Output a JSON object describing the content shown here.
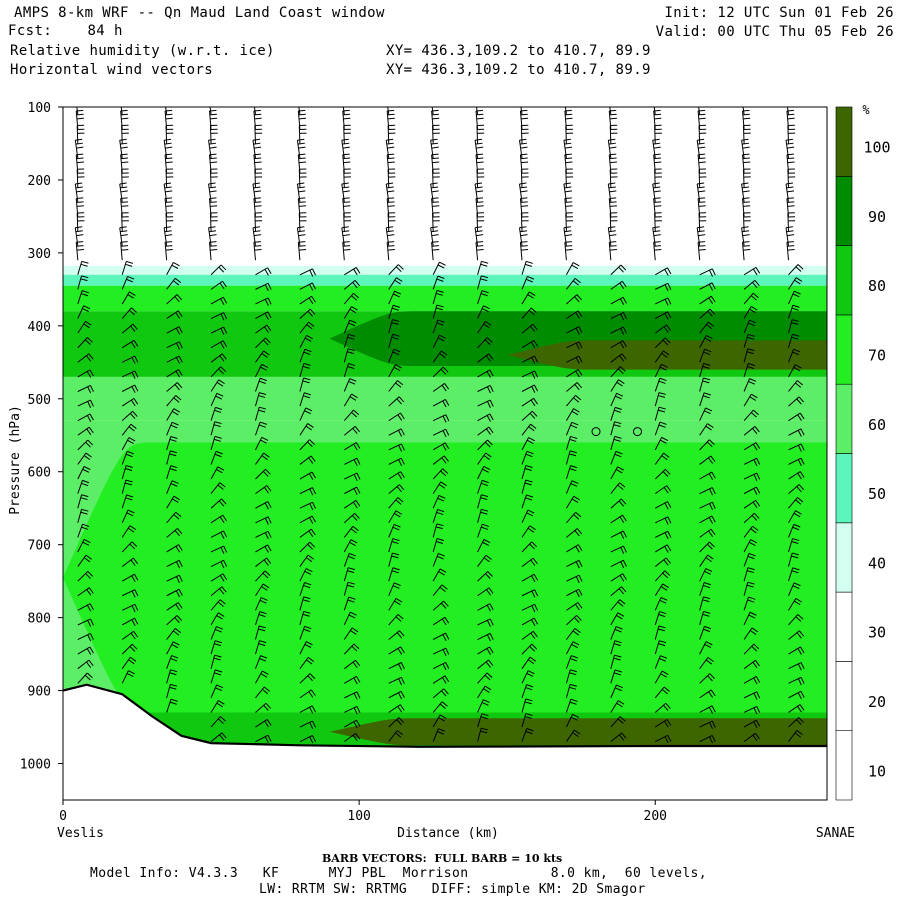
{
  "header": {
    "title": "AMPS 8-km WRF -- Qn Maud Land Coast window",
    "fcst": "Fcst:    84 h",
    "field1": "Relative humidity (w.r.t. ice)",
    "field2": "Horizontal wind vectors",
    "xy1": "XY= 436.3,109.2 to 410.7, 89.9",
    "xy2": "XY= 436.3,109.2 to 410.7, 89.9",
    "init": "Init: 12 UTC Sun 01 Feb 26",
    "valid": "Valid: 00 UTC Thu 05 Feb 26"
  },
  "footer": {
    "barb_note": "BARB VECTORS:  FULL BARB = 10 kts",
    "model_info": "Model Info: V4.3.3   KF      MYJ PBL  Morrison          8.0 km,  60 levels,",
    "model_info2": "LW: RRTM SW: RRTMG   DIFF: simple KM: 2D Smagor"
  },
  "chart_data": {
    "type": "heatmap",
    "title": "Relative humidity (w.r.t. ice)",
    "ylabel": "Pressure (hPa)",
    "xlabel": "Distance (km)",
    "x_start_label": "Veslis",
    "x_end_label": "SANAE",
    "xlim": [
      0,
      258
    ],
    "ylim": [
      1050,
      100
    ],
    "xticks": [
      0,
      100,
      200
    ],
    "yticks": [
      100,
      200,
      300,
      400,
      500,
      600,
      700,
      800,
      900,
      1000
    ],
    "colorbar": {
      "unit": "%",
      "levels": [
        10,
        20,
        30,
        40,
        50,
        60,
        70,
        80,
        90,
        100
      ],
      "colors": [
        "#ffffff",
        "#ffffff",
        "#ffffff",
        "#d2fff0",
        "#5cf5bc",
        "#5cee66",
        "#22ee22",
        "#11c811",
        "#008c00",
        "#3e6600"
      ]
    },
    "rh_profile": [
      {
        "p_top": 100,
        "p_bot": 318,
        "rh": 5
      },
      {
        "p_top": 318,
        "p_bot": 330,
        "rh": 35
      },
      {
        "p_top": 330,
        "p_bot": 345,
        "rh": 45
      },
      {
        "p_top": 345,
        "p_bot": 380,
        "rh": 65
      },
      {
        "p_top": 380,
        "p_bot": 470,
        "rh": 75
      },
      {
        "p_top": 470,
        "p_bot": 530,
        "rh": 55
      },
      {
        "p_top": 530,
        "p_bot": 930,
        "rh": 55
      },
      {
        "p_top": 930,
        "p_bot": 1050,
        "rh": 75
      }
    ],
    "features": [
      {
        "name": "upper moist band core",
        "rh": 85,
        "x_range": [
          90,
          258
        ],
        "p_range": [
          380,
          455
        ]
      },
      {
        "name": "upper moist band max",
        "rh": 95,
        "x_range": [
          150,
          258
        ],
        "p_range": [
          420,
          460
        ]
      },
      {
        "name": "lower moist region",
        "rh": 65,
        "x_range": [
          0,
          258
        ],
        "p_range": [
          560,
          930
        ]
      },
      {
        "name": "near-surface max",
        "rh": 105,
        "x_range": [
          90,
          258
        ],
        "p_range": [
          938,
          975
        ]
      }
    ],
    "terrain_surface": [
      {
        "x": 0,
        "p": 900
      },
      {
        "x": 8,
        "p": 892
      },
      {
        "x": 20,
        "p": 905
      },
      {
        "x": 30,
        "p": 935
      },
      {
        "x": 40,
        "p": 962
      },
      {
        "x": 50,
        "p": 972
      },
      {
        "x": 80,
        "p": 975
      },
      {
        "x": 120,
        "p": 977
      },
      {
        "x": 200,
        "p": 976
      },
      {
        "x": 258,
        "p": 976
      }
    ],
    "barb_columns_km": [
      5,
      20,
      35,
      50,
      65,
      80,
      95,
      110,
      125,
      140,
      155,
      170,
      185,
      200,
      215,
      230,
      245
    ],
    "barb_levels_hpa": [
      110,
      130,
      150,
      170,
      190,
      210,
      230,
      250,
      270,
      290,
      310,
      330,
      350,
      370,
      390,
      410,
      430,
      450,
      470,
      490,
      510,
      530,
      550,
      570,
      590,
      610,
      630,
      650,
      670,
      690,
      710,
      730,
      750,
      770,
      790,
      810,
      830,
      850,
      870,
      890,
      910,
      930,
      950,
      970
    ],
    "calm_markers": [
      {
        "x": 180,
        "p": 545
      },
      {
        "x": 194,
        "p": 545
      }
    ]
  }
}
